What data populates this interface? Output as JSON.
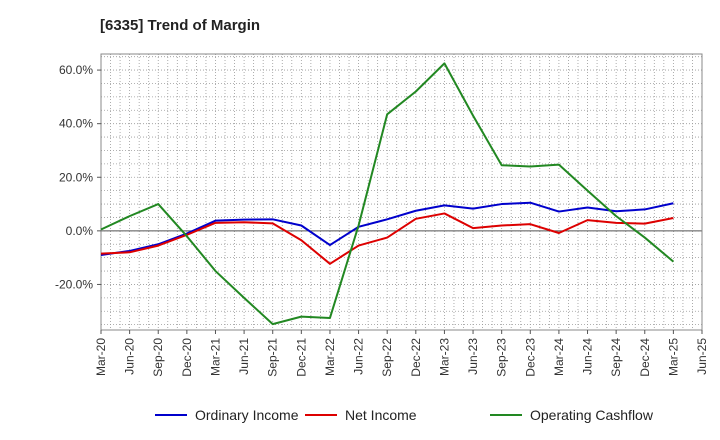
{
  "chart_data": {
    "type": "line",
    "title": "[6335]  Trend of Margin",
    "xlabel": "",
    "ylabel": "",
    "x": [
      "Mar-20",
      "Jun-20",
      "Sep-20",
      "Dec-20",
      "Mar-21",
      "Jun-21",
      "Sep-21",
      "Dec-21",
      "Mar-22",
      "Jun-22",
      "Sep-22",
      "Dec-22",
      "Mar-23",
      "Jun-23",
      "Sep-23",
      "Dec-23",
      "Mar-24",
      "Jun-24",
      "Sep-24",
      "Dec-24",
      "Mar-25",
      "Jun-25"
    ],
    "ylim": [
      -37,
      66
    ],
    "yticks": [
      60,
      40,
      20,
      0,
      -20
    ],
    "ytick_labels": [
      "60.0%",
      "40.0%",
      "20.0%",
      "0.0%",
      "-20.0%"
    ],
    "grid": true,
    "legend_position": "bottom",
    "series": [
      {
        "name": "Ordinary Income",
        "color": "#0000cc",
        "values": [
          -9.0,
          -7.5,
          -5.0,
          -1.0,
          3.8,
          4.2,
          4.3,
          2.0,
          -5.3,
          1.5,
          4.3,
          7.5,
          9.5,
          8.3,
          10.0,
          10.5,
          7.2,
          8.7,
          7.3,
          8.0,
          10.3,
          null
        ]
      },
      {
        "name": "Net Income",
        "color": "#dd0000",
        "values": [
          -8.5,
          -8.0,
          -5.5,
          -1.5,
          3.0,
          3.2,
          2.8,
          -3.5,
          -12.3,
          -5.5,
          -2.5,
          4.5,
          6.5,
          1.0,
          2.0,
          2.5,
          -0.8,
          4.0,
          3.0,
          2.7,
          4.8,
          null
        ]
      },
      {
        "name": "Operating Cashflow",
        "color": "#228822",
        "values": [
          0.5,
          5.5,
          10.0,
          -2.0,
          -15.0,
          -25.0,
          -34.8,
          -32.0,
          -32.5,
          2.0,
          43.5,
          52.0,
          62.5,
          43.0,
          24.5,
          24.0,
          24.7,
          15.0,
          5.5,
          -2.5,
          -11.5,
          null
        ]
      }
    ]
  }
}
